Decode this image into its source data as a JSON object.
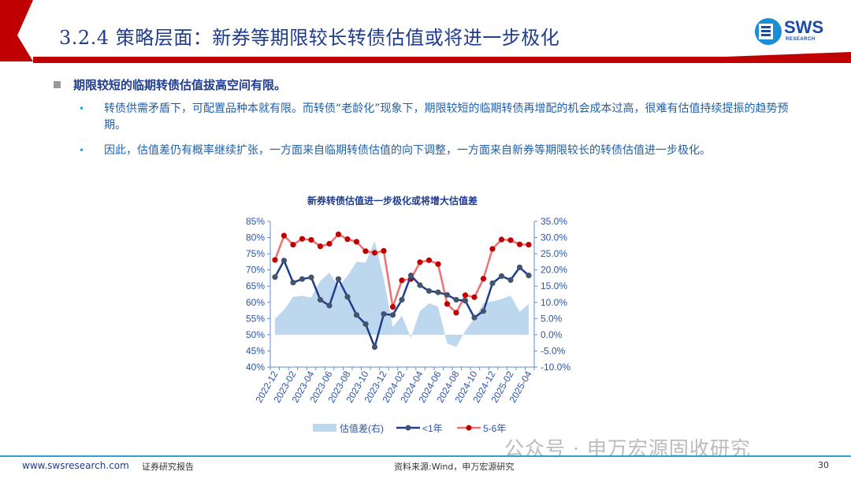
{
  "header": {
    "title": "3.2.4 策略层面：新券等期限较长转债估值或将进一步极化",
    "logo_text": "SWS",
    "logo_sub": "RESEARCH",
    "accent_color": "#c00000"
  },
  "content": {
    "heading": "期限较短的临期转债估值拔高空间有限。",
    "bullets": [
      "转债供需矛盾下，可配置品种本就有限。而转债“老龄化”现象下，期限较短的临期转债再增配的机会成本过高，很难有估值持续提振的趋势预期。",
      "因此，估值差仍有概率继续扩张，一方面来自临期转债估值的向下调整，一方面来自新券等期限较长的转债估值进一步极化。"
    ]
  },
  "chart_data": {
    "type": "line",
    "title": "新券转债估值进一步极化或将增大估值差",
    "x": [
      "2022-12",
      "2023-01",
      "2023-02",
      "2023-03",
      "2023-04",
      "2023-05",
      "2023-06",
      "2023-07",
      "2023-08",
      "2023-09",
      "2023-10",
      "2023-11",
      "2023-12",
      "2024-01",
      "2024-02",
      "2024-03",
      "2024-04",
      "2024-05",
      "2024-06",
      "2024-07",
      "2024-08",
      "2024-09",
      "2024-10",
      "2024-11",
      "2024-12",
      "2025-01",
      "2025-02",
      "2025-03",
      "2025-04"
    ],
    "xtick_labels": [
      "2022-12",
      "2023-02",
      "2023-04",
      "2023-06",
      "2023-08",
      "2023-10",
      "2023-12",
      "2024-02",
      "2024-04",
      "2024-06",
      "2024-08",
      "2024-10",
      "2024-12",
      "2025-02",
      "2025-04"
    ],
    "left_axis": {
      "range": [
        40,
        85
      ],
      "ticks": [
        "40%",
        "45%",
        "50%",
        "55%",
        "60%",
        "65%",
        "70%",
        "75%",
        "80%",
        "85%"
      ]
    },
    "right_axis": {
      "range": [
        -10,
        35
      ],
      "ticks": [
        "-10.0%",
        "-5.0%",
        "0.0%",
        "5.0%",
        "10.0%",
        "15.0%",
        "20.0%",
        "25.0%",
        "30.0%",
        "35.0%"
      ]
    },
    "series": [
      {
        "name": "估值差(右)",
        "type": "area",
        "axis": "right",
        "color": "#bdd7ee",
        "values": [
          4.9,
          7.7,
          11.7,
          12.0,
          11.5,
          16.6,
          19.2,
          15.0,
          18.2,
          22.5,
          22.3,
          29.0,
          17.4,
          2.3,
          5.9,
          -1.0,
          7.3,
          9.7,
          8.7,
          -2.7,
          -3.8,
          1.2,
          5.1,
          9.7,
          10.3,
          11.0,
          12.1,
          7.1,
          9.5
        ]
      },
      {
        "name": "<1年",
        "type": "line",
        "axis": "left",
        "color": "#1f3c8f",
        "marker_color": "#44546a",
        "values": [
          67.8,
          72.9,
          66.1,
          67.2,
          67.7,
          60.8,
          59.0,
          67.2,
          61.7,
          56.1,
          53.3,
          46.2,
          56.4,
          56.1,
          60.8,
          68.3,
          65.3,
          63.5,
          63.1,
          62.3,
          60.8,
          60.5,
          55.3,
          57.3,
          65.9,
          68.1,
          66.9,
          70.8,
          68.3
        ]
      },
      {
        "name": "5-6年",
        "type": "line",
        "axis": "left",
        "color": "#f07070",
        "marker_color": "#c00000",
        "values": [
          73.1,
          80.6,
          77.8,
          79.6,
          79.3,
          77.3,
          78.1,
          81.0,
          79.5,
          78.7,
          75.8,
          75.3,
          75.9,
          58.6,
          66.8,
          67.2,
          72.4,
          73.0,
          71.8,
          59.5,
          56.8,
          62.2,
          61.6,
          67.3,
          76.5,
          79.4,
          79.2,
          77.9,
          77.8
        ]
      }
    ],
    "legend_position": "bottom",
    "grid": false
  },
  "watermark": "公众号 · 申万宏源固收研究",
  "footer": {
    "website": "www.swsresearch.com",
    "report_type": "证券研究报告",
    "source": "资料来源:Wind，申万宏源研究",
    "page": "30"
  }
}
